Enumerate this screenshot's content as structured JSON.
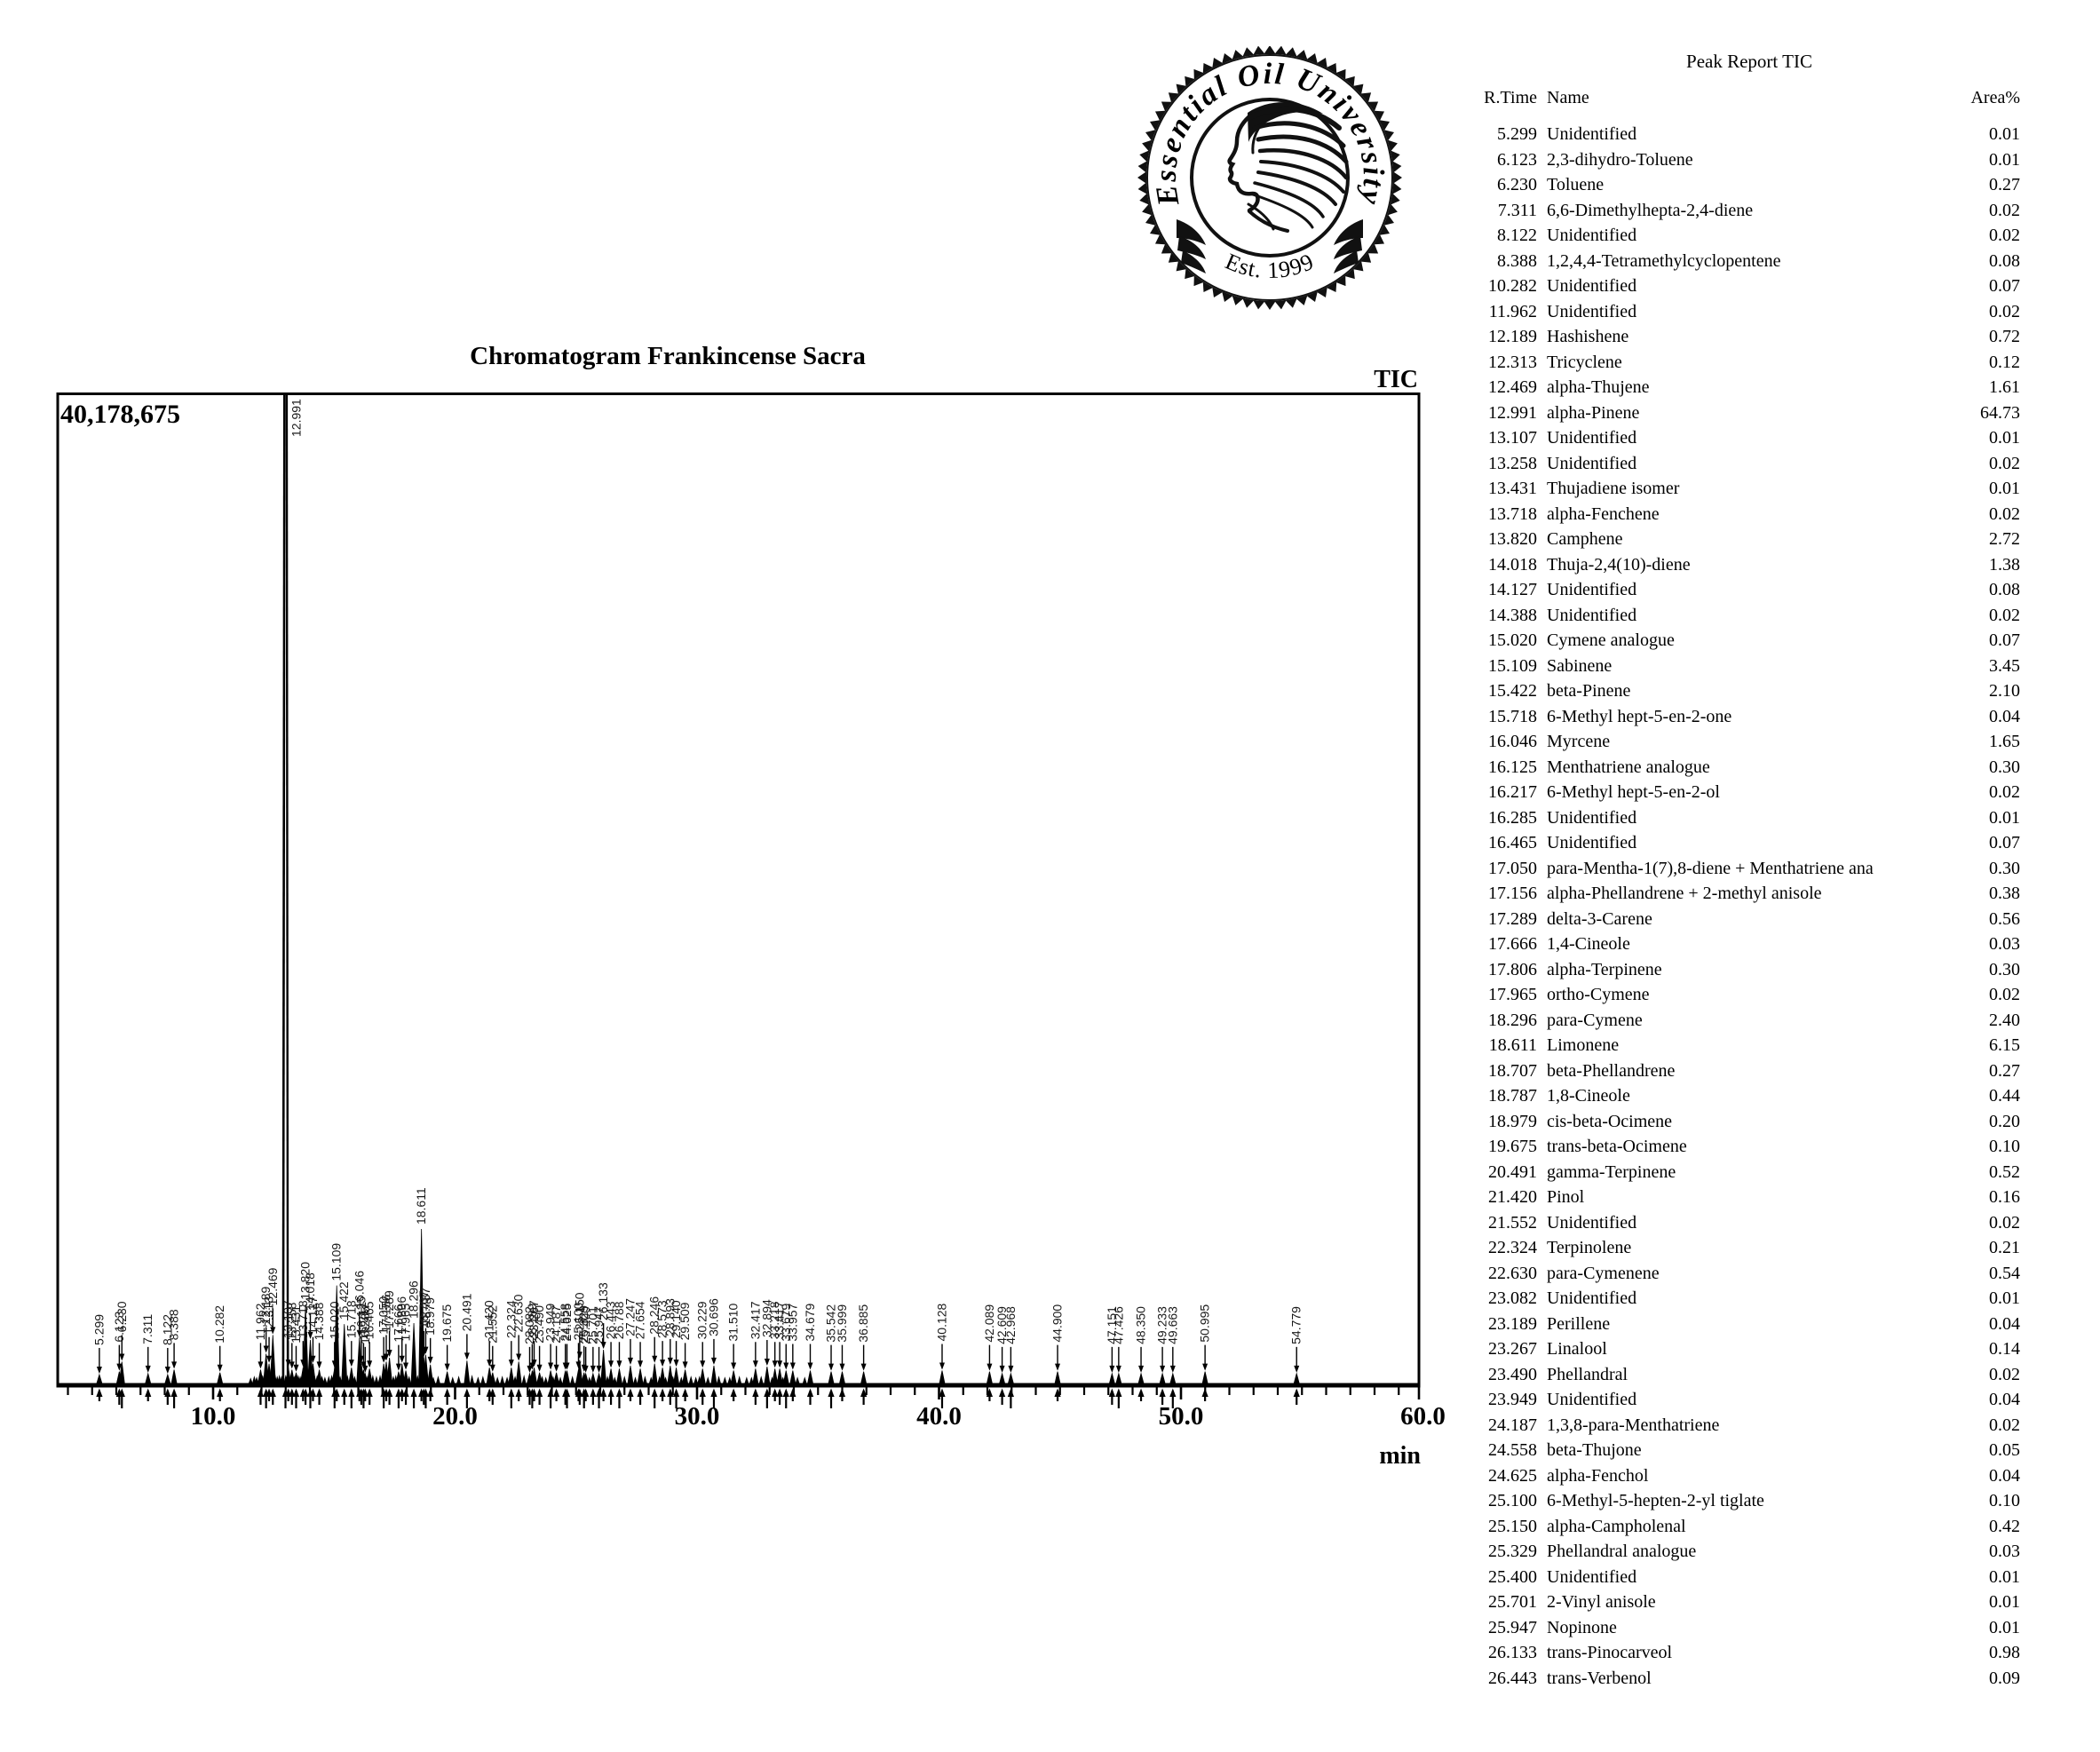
{
  "logo": {
    "arc_text": "Essential Oil University",
    "est_text": "Est. 1999"
  },
  "peak_report": {
    "title": "Peak Report TIC",
    "columns": [
      "R.Time",
      "Name",
      "Area%"
    ],
    "rows": [
      [
        "5.299",
        "Unidentified",
        "0.01"
      ],
      [
        "6.123",
        "2,3-dihydro-Toluene",
        "0.01"
      ],
      [
        "6.230",
        "Toluene",
        "0.27"
      ],
      [
        "7.311",
        "6,6-Dimethylhepta-2,4-diene",
        "0.02"
      ],
      [
        "8.122",
        "Unidentified",
        "0.02"
      ],
      [
        "8.388",
        "1,2,4,4-Tetramethylcyclopentene",
        "0.08"
      ],
      [
        "10.282",
        "Unidentified",
        "0.07"
      ],
      [
        "11.962",
        "Unidentified",
        "0.02"
      ],
      [
        "12.189",
        "Hashishene",
        "0.72"
      ],
      [
        "12.313",
        "Tricyclene",
        "0.12"
      ],
      [
        "12.469",
        "alpha-Thujene",
        "1.61"
      ],
      [
        "12.991",
        "alpha-Pinene",
        "64.73"
      ],
      [
        "13.107",
        "Unidentified",
        "0.01"
      ],
      [
        "13.258",
        "Unidentified",
        "0.02"
      ],
      [
        "13.431",
        "Thujadiene isomer",
        "0.01"
      ],
      [
        "13.718",
        "alpha-Fenchene",
        "0.02"
      ],
      [
        "13.820",
        "Camphene",
        "2.72"
      ],
      [
        "14.018",
        "Thuja-2,4(10)-diene",
        "1.38"
      ],
      [
        "14.127",
        "Unidentified",
        "0.08"
      ],
      [
        "14.388",
        "Unidentified",
        "0.02"
      ],
      [
        "15.020",
        "Cymene analogue",
        "0.07"
      ],
      [
        "15.109",
        "Sabinene",
        "3.45"
      ],
      [
        "15.422",
        "beta-Pinene",
        "2.10"
      ],
      [
        "15.718",
        "6-Methyl hept-5-en-2-one",
        "0.04"
      ],
      [
        "16.046",
        "Myrcene",
        "1.65"
      ],
      [
        "16.125",
        "Menthatriene analogue",
        "0.30"
      ],
      [
        "16.217",
        "6-Methyl hept-5-en-2-ol",
        "0.02"
      ],
      [
        "16.285",
        "Unidentified",
        "0.01"
      ],
      [
        "16.465",
        "Unidentified",
        "0.07"
      ],
      [
        "17.050",
        "para-Mentha-1(7),8-diene + Menthatriene ana",
        "0.30"
      ],
      [
        "17.156",
        "alpha-Phellandrene + 2-methyl anisole",
        "0.38"
      ],
      [
        "17.289",
        "delta-3-Carene",
        "0.56"
      ],
      [
        "17.666",
        "1,4-Cineole",
        "0.03"
      ],
      [
        "17.806",
        "alpha-Terpinene",
        "0.30"
      ],
      [
        "17.965",
        "ortho-Cymene",
        "0.02"
      ],
      [
        "18.296",
        "para-Cymene",
        "2.40"
      ],
      [
        "18.611",
        "Limonene",
        "6.15"
      ],
      [
        "18.707",
        "beta-Phellandrene",
        "0.27"
      ],
      [
        "18.787",
        "1,8-Cineole",
        "0.44"
      ],
      [
        "18.979",
        "cis-beta-Ocimene",
        "0.20"
      ],
      [
        "19.675",
        "trans-beta-Ocimene",
        "0.10"
      ],
      [
        "20.491",
        "gamma-Terpinene",
        "0.52"
      ],
      [
        "21.420",
        "Pinol",
        "0.16"
      ],
      [
        "21.552",
        "Unidentified",
        "0.02"
      ],
      [
        "22.324",
        "Terpinolene",
        "0.21"
      ],
      [
        "22.630",
        "para-Cymenene",
        "0.54"
      ],
      [
        "23.082",
        "Unidentified",
        "0.01"
      ],
      [
        "23.189",
        "Perillene",
        "0.04"
      ],
      [
        "23.267",
        "Linalool",
        "0.14"
      ],
      [
        "23.490",
        "Phellandral",
        "0.02"
      ],
      [
        "23.949",
        "Unidentified",
        "0.04"
      ],
      [
        "24.187",
        "1,3,8-para-Menthatriene",
        "0.02"
      ],
      [
        "24.558",
        "beta-Thujone",
        "0.05"
      ],
      [
        "24.625",
        "alpha-Fenchol",
        "0.04"
      ],
      [
        "25.100",
        "6-Methyl-5-hepten-2-yl tiglate",
        "0.10"
      ],
      [
        "25.150",
        "alpha-Campholenal",
        "0.42"
      ],
      [
        "25.329",
        "Phellandral analogue",
        "0.03"
      ],
      [
        "25.400",
        "Unidentified",
        "0.01"
      ],
      [
        "25.701",
        "2-Vinyl anisole",
        "0.01"
      ],
      [
        "25.947",
        "Nopinone",
        "0.01"
      ],
      [
        "26.133",
        "trans-Pinocarveol",
        "0.98"
      ],
      [
        "26.443",
        "trans-Verbenol",
        "0.09"
      ]
    ]
  },
  "chart_data": {
    "type": "line",
    "title": "Chromatogram Frankincense Sacra",
    "signal": "TIC",
    "y_full_scale_label": "40,178,675",
    "y_full_scale": 40178675,
    "x_axis_range_min": [
      3.6,
      59.9
    ],
    "x_ticks": [
      10,
      20,
      30,
      40,
      50,
      60
    ],
    "x_tick_labels": [
      "10.0",
      "20.0",
      "30.0",
      "40.0",
      "50.0",
      "60.0"
    ],
    "x_unit": "min",
    "grid": false,
    "peak_height_unit": "percent_of_full_scale",
    "peaks": [
      [
        5.299,
        0.9,
        "5.299"
      ],
      [
        6.123,
        1.2,
        "6.123"
      ],
      [
        6.23,
        2.2,
        "6.230"
      ],
      [
        7.311,
        1.0,
        "7.311"
      ],
      [
        8.122,
        0.9,
        "8.122"
      ],
      [
        8.388,
        1.4,
        "8.388"
      ],
      [
        10.282,
        1.1,
        "10.282"
      ],
      [
        11.962,
        1.4,
        "11.962"
      ],
      [
        12.189,
        3.0,
        "12.189"
      ],
      [
        12.313,
        2.0,
        "12.313"
      ],
      [
        12.469,
        4.9,
        "12.469"
      ],
      [
        12.991,
        100,
        "12.991"
      ],
      [
        13.107,
        1.6,
        "13.107"
      ],
      [
        13.258,
        1.4,
        "13.258"
      ],
      [
        13.431,
        1.1,
        "13.431"
      ],
      [
        13.718,
        1.6,
        "13.718"
      ],
      [
        13.82,
        8.0,
        "13.820"
      ],
      [
        14.018,
        4.4,
        "14.018"
      ],
      [
        14.127,
        2.0,
        "14.127"
      ],
      [
        14.388,
        1.4,
        "14.388"
      ],
      [
        15.02,
        1.5,
        "15.020"
      ],
      [
        15.109,
        9.9,
        "15.109"
      ],
      [
        15.422,
        6.0,
        "15.422"
      ],
      [
        15.718,
        1.6,
        "15.718"
      ],
      [
        16.046,
        4.6,
        "16.046"
      ],
      [
        16.125,
        2.0,
        "16.125"
      ],
      [
        16.217,
        1.4,
        "16.217"
      ],
      [
        16.285,
        1.0,
        "16.285"
      ],
      [
        16.465,
        1.5,
        "16.465"
      ],
      [
        17.05,
        2.0,
        "17.050"
      ],
      [
        17.156,
        2.2,
        "17.156"
      ],
      [
        17.289,
        2.6,
        "17.289"
      ],
      [
        17.666,
        1.2,
        "17.666"
      ],
      [
        17.806,
        2.0,
        "17.806"
      ],
      [
        17.965,
        1.3,
        "17.965"
      ],
      [
        18.296,
        6.1,
        "18.296"
      ],
      [
        18.611,
        15.6,
        "18.611"
      ],
      [
        18.707,
        2.6,
        "18.707"
      ],
      [
        18.787,
        2.9,
        "18.787"
      ],
      [
        18.979,
        1.9,
        "18.979"
      ],
      [
        19.675,
        1.2,
        "19.675"
      ],
      [
        20.491,
        2.3,
        "20.491"
      ],
      [
        21.42,
        1.6,
        "21.420"
      ],
      [
        21.552,
        1.1,
        "21.552"
      ],
      [
        22.324,
        1.6,
        "22.324"
      ],
      [
        22.63,
        2.2,
        "22.630"
      ],
      [
        23.082,
        1.0,
        "23.082"
      ],
      [
        23.189,
        1.3,
        "23.189"
      ],
      [
        23.267,
        1.6,
        "23.267"
      ],
      [
        23.49,
        1.1,
        "23.490"
      ],
      [
        23.949,
        1.3,
        "23.949"
      ],
      [
        24.187,
        1.1,
        "24.187"
      ],
      [
        24.558,
        1.3,
        "24.558"
      ],
      [
        24.625,
        1.3,
        "24.625"
      ],
      [
        25.1,
        1.4,
        "25.100"
      ],
      [
        25.15,
        2.4,
        "25.150"
      ],
      [
        25.329,
        1.1,
        "25.329"
      ],
      [
        25.4,
        1.0,
        "25.400"
      ],
      [
        25.701,
        1.0,
        "25.701"
      ],
      [
        25.947,
        1.0,
        "25.947"
      ],
      [
        26.133,
        3.4,
        "26.133"
      ],
      [
        26.443,
        1.5,
        "26.443"
      ],
      [
        26.788,
        1.5,
        "26.788"
      ],
      [
        27.247,
        1.8,
        "27.247"
      ],
      [
        27.654,
        1.5,
        "27.654"
      ],
      [
        28.246,
        2.0,
        "28.246"
      ],
      [
        28.573,
        1.6,
        "28.573"
      ],
      [
        28.893,
        1.8,
        "28.893"
      ],
      [
        29.14,
        1.6,
        "29.140"
      ],
      [
        29.509,
        1.4,
        "29.509"
      ],
      [
        30.229,
        1.5,
        "30.229"
      ],
      [
        30.696,
        1.8,
        "30.696"
      ],
      [
        31.51,
        1.3,
        "31.510"
      ],
      [
        32.417,
        1.5,
        "32.417"
      ],
      [
        32.894,
        1.7,
        "32.894"
      ],
      [
        33.218,
        1.5,
        "33.218"
      ],
      [
        33.417,
        1.5,
        "33.417"
      ],
      [
        33.679,
        1.3,
        "33.679"
      ],
      [
        33.957,
        1.3,
        "33.957"
      ],
      [
        34.679,
        1.3,
        "34.679"
      ],
      [
        35.542,
        1.2,
        "35.542"
      ],
      [
        35.999,
        1.2,
        "35.999"
      ],
      [
        36.885,
        1.2,
        "36.885"
      ],
      [
        40.128,
        1.3,
        "40.128"
      ],
      [
        42.089,
        1.2,
        "42.089"
      ],
      [
        42.609,
        1.0,
        "42.609"
      ],
      [
        42.968,
        1.0,
        "42.968"
      ],
      [
        44.9,
        1.2,
        "44.900"
      ],
      [
        47.151,
        1.0,
        "47.151"
      ],
      [
        47.426,
        1.0,
        "47.426"
      ],
      [
        48.35,
        1.0,
        "48.350"
      ],
      [
        49.233,
        1.0,
        "49.233"
      ],
      [
        49.663,
        1.0,
        "49.663"
      ],
      [
        50.995,
        1.2,
        "50.995"
      ],
      [
        54.779,
        1.0,
        "54.779"
      ]
    ],
    "noise": [
      [
        11.55,
        0.6
      ],
      [
        11.7,
        0.8
      ],
      [
        11.8,
        0.7
      ],
      [
        12.05,
        0.9
      ],
      [
        12.12,
        0.8
      ],
      [
        12.25,
        0.9
      ],
      [
        12.56,
        1.0
      ],
      [
        12.65,
        0.8
      ],
      [
        12.74,
        0.9
      ],
      [
        12.83,
        0.8
      ],
      [
        13.0,
        0.9
      ],
      [
        13.35,
        0.8
      ],
      [
        13.52,
        0.9
      ],
      [
        13.6,
        0.8
      ],
      [
        13.95,
        0.9
      ],
      [
        14.2,
        0.8
      ],
      [
        14.3,
        0.9
      ],
      [
        14.5,
        0.8
      ],
      [
        14.62,
        0.7
      ],
      [
        14.78,
        0.8
      ],
      [
        14.9,
        0.9
      ],
      [
        15.25,
        0.8
      ],
      [
        15.55,
        0.9
      ],
      [
        15.85,
        0.8
      ],
      [
        16.38,
        0.8
      ],
      [
        16.6,
        0.9
      ],
      [
        16.75,
        0.8
      ],
      [
        16.9,
        0.9
      ],
      [
        17.45,
        0.8
      ],
      [
        17.55,
        0.9
      ],
      [
        18.1,
        0.8
      ],
      [
        18.45,
        0.9
      ],
      [
        19.1,
        0.7
      ],
      [
        19.3,
        0.8
      ],
      [
        19.9,
        0.7
      ],
      [
        20.15,
        0.8
      ],
      [
        20.7,
        0.9
      ],
      [
        20.95,
        0.7
      ],
      [
        21.15,
        0.8
      ],
      [
        21.75,
        0.7
      ],
      [
        21.95,
        0.8
      ],
      [
        22.15,
        0.7
      ],
      [
        22.48,
        0.8
      ],
      [
        22.85,
        0.9
      ],
      [
        23.6,
        0.8
      ],
      [
        23.75,
        0.7
      ],
      [
        24.05,
        0.8
      ],
      [
        24.35,
        0.7
      ],
      [
        24.85,
        0.8
      ],
      [
        25.55,
        0.7
      ],
      [
        26.0,
        0.7
      ],
      [
        26.3,
        0.8
      ],
      [
        26.6,
        0.7
      ],
      [
        27.0,
        0.8
      ],
      [
        27.45,
        0.7
      ],
      [
        27.85,
        0.8
      ],
      [
        28.1,
        0.7
      ],
      [
        28.45,
        0.8
      ],
      [
        28.7,
        0.7
      ],
      [
        29.0,
        0.8
      ],
      [
        29.35,
        0.7
      ],
      [
        29.75,
        0.8
      ],
      [
        29.95,
        0.7
      ],
      [
        30.1,
        0.8
      ],
      [
        30.45,
        0.7
      ],
      [
        30.9,
        0.8
      ],
      [
        31.15,
        0.7
      ],
      [
        31.35,
        0.7
      ],
      [
        31.75,
        0.8
      ],
      [
        32.05,
        0.7
      ],
      [
        32.25,
        0.7
      ],
      [
        32.65,
        0.8
      ],
      [
        33.1,
        0.7
      ],
      [
        33.55,
        0.7
      ],
      [
        34.15,
        0.7
      ],
      [
        34.45,
        0.7
      ]
    ]
  }
}
